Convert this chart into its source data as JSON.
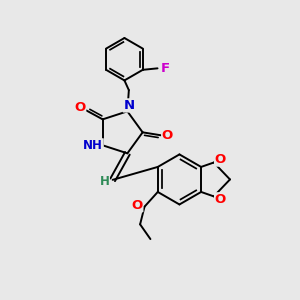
{
  "background_color": "#e8e8e8",
  "bond_color": "#000000",
  "atom_colors": {
    "N": "#0000cd",
    "O": "#ff0000",
    "F": "#cc00cc",
    "C": "#000000",
    "H": "#2e8b57"
  },
  "line_width": 1.4,
  "font_size": 8.5
}
